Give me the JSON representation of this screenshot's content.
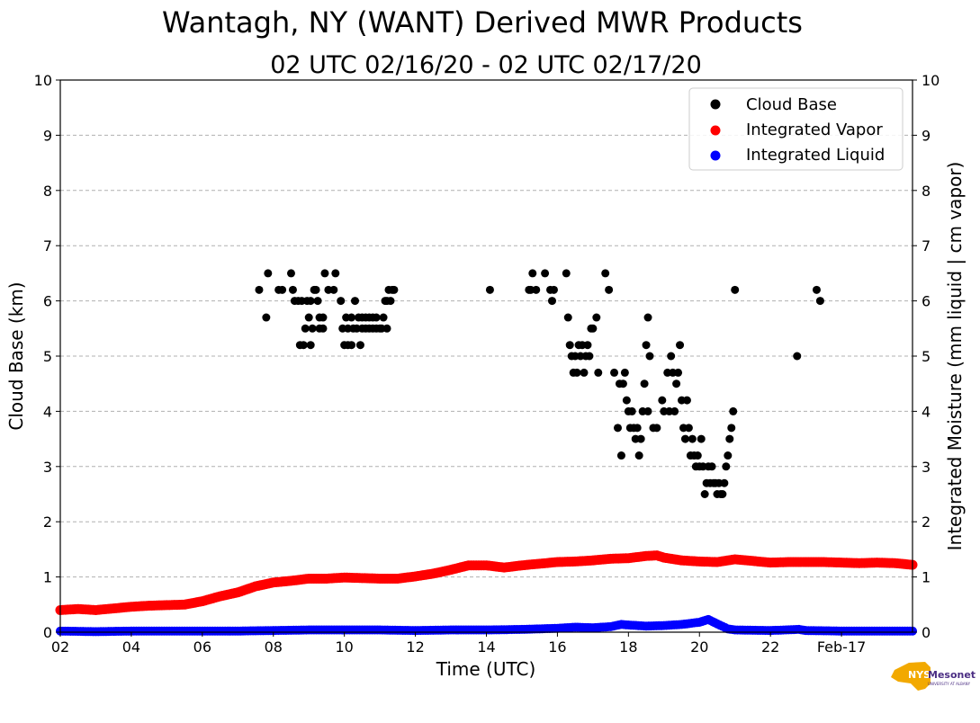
{
  "chart_data": {
    "type": "scatter",
    "title": "Wantagh, NY (WANT) Derived MWR Products",
    "subtitle": "02 UTC 02/16/20 - 02 UTC 02/17/20",
    "xlabel": "Time (UTC)",
    "ylabel": "Cloud Base (km)",
    "ylabel_right": "Integrated Moisture (mm liquid | cm vapor)",
    "xlim": [
      2,
      26
    ],
    "ylim": [
      0,
      10
    ],
    "x_ticks": [
      {
        "x": 2,
        "label": "02"
      },
      {
        "x": 4,
        "label": "04"
      },
      {
        "x": 6,
        "label": "06"
      },
      {
        "x": 8,
        "label": "08"
      },
      {
        "x": 10,
        "label": "10"
      },
      {
        "x": 12,
        "label": "12"
      },
      {
        "x": 14,
        "label": "14"
      },
      {
        "x": 16,
        "label": "16"
      },
      {
        "x": 18,
        "label": "18"
      },
      {
        "x": 20,
        "label": "20"
      },
      {
        "x": 22,
        "label": "22"
      },
      {
        "x": 24,
        "label": "Feb-17"
      }
    ],
    "y_ticks": [
      0,
      1,
      2,
      3,
      4,
      5,
      6,
      7,
      8,
      9,
      10
    ],
    "grid": "horizontal dashed",
    "legend_position": "top-right",
    "series": [
      {
        "name": "Cloud Base",
        "color": "#000000",
        "points": [
          [
            7.6,
            6.2
          ],
          [
            7.8,
            5.7
          ],
          [
            7.85,
            6.5
          ],
          [
            8.15,
            6.2
          ],
          [
            8.25,
            6.2
          ],
          [
            8.5,
            6.5
          ],
          [
            8.55,
            6.2
          ],
          [
            8.6,
            6.0
          ],
          [
            8.7,
            6.0
          ],
          [
            8.75,
            5.2
          ],
          [
            8.8,
            6.0
          ],
          [
            8.85,
            5.2
          ],
          [
            8.9,
            5.5
          ],
          [
            8.95,
            6.0
          ],
          [
            9.0,
            5.7
          ],
          [
            9.05,
            6.0
          ],
          [
            9.05,
            5.2
          ],
          [
            9.1,
            5.5
          ],
          [
            9.15,
            6.2
          ],
          [
            9.2,
            6.2
          ],
          [
            9.25,
            6.0
          ],
          [
            9.3,
            5.7
          ],
          [
            9.3,
            5.5
          ],
          [
            9.4,
            5.7
          ],
          [
            9.4,
            5.5
          ],
          [
            9.45,
            6.5
          ],
          [
            9.55,
            6.2
          ],
          [
            9.7,
            6.2
          ],
          [
            9.75,
            6.5
          ],
          [
            9.9,
            6.0
          ],
          [
            9.95,
            5.5
          ],
          [
            10.0,
            5.2
          ],
          [
            10.05,
            5.7
          ],
          [
            10.1,
            5.5
          ],
          [
            10.1,
            5.2
          ],
          [
            10.2,
            5.7
          ],
          [
            10.2,
            5.2
          ],
          [
            10.25,
            5.5
          ],
          [
            10.3,
            6.0
          ],
          [
            10.35,
            5.5
          ],
          [
            10.4,
            5.7
          ],
          [
            10.45,
            5.2
          ],
          [
            10.5,
            5.5
          ],
          [
            10.5,
            5.7
          ],
          [
            10.6,
            5.5
          ],
          [
            10.6,
            5.7
          ],
          [
            10.7,
            5.7
          ],
          [
            10.7,
            5.5
          ],
          [
            10.8,
            5.7
          ],
          [
            10.8,
            5.5
          ],
          [
            10.9,
            5.5
          ],
          [
            10.9,
            5.7
          ],
          [
            11.0,
            5.5
          ],
          [
            11.05,
            5.5
          ],
          [
            11.1,
            5.7
          ],
          [
            11.15,
            6.0
          ],
          [
            11.2,
            5.5
          ],
          [
            11.2,
            6.0
          ],
          [
            11.25,
            6.2
          ],
          [
            11.3,
            6.0
          ],
          [
            11.35,
            6.2
          ],
          [
            11.4,
            6.2
          ],
          [
            14.1,
            6.2
          ],
          [
            15.2,
            6.2
          ],
          [
            15.25,
            6.2
          ],
          [
            15.3,
            6.5
          ],
          [
            15.4,
            6.2
          ],
          [
            15.65,
            6.5
          ],
          [
            15.8,
            6.2
          ],
          [
            15.85,
            6.0
          ],
          [
            15.9,
            6.2
          ],
          [
            16.25,
            6.5
          ],
          [
            16.3,
            5.7
          ],
          [
            16.35,
            5.2
          ],
          [
            16.4,
            5.0
          ],
          [
            16.45,
            4.7
          ],
          [
            16.5,
            5.0
          ],
          [
            16.55,
            4.7
          ],
          [
            16.6,
            5.2
          ],
          [
            16.65,
            5.0
          ],
          [
            16.7,
            5.2
          ],
          [
            16.75,
            4.7
          ],
          [
            16.8,
            5.0
          ],
          [
            16.85,
            5.2
          ],
          [
            16.9,
            5.0
          ],
          [
            16.95,
            5.5
          ],
          [
            17.0,
            5.5
          ],
          [
            17.1,
            5.7
          ],
          [
            17.15,
            4.7
          ],
          [
            17.35,
            6.5
          ],
          [
            17.45,
            6.2
          ],
          [
            17.6,
            4.7
          ],
          [
            17.7,
            3.7
          ],
          [
            17.75,
            4.5
          ],
          [
            17.8,
            3.2
          ],
          [
            17.85,
            4.5
          ],
          [
            17.9,
            4.7
          ],
          [
            17.95,
            4.2
          ],
          [
            18.0,
            4.0
          ],
          [
            18.05,
            3.7
          ],
          [
            18.1,
            4.0
          ],
          [
            18.15,
            3.7
          ],
          [
            18.2,
            3.5
          ],
          [
            18.25,
            3.7
          ],
          [
            18.3,
            3.2
          ],
          [
            18.35,
            3.5
          ],
          [
            18.4,
            4.0
          ],
          [
            18.45,
            4.5
          ],
          [
            18.5,
            5.2
          ],
          [
            18.55,
            5.7
          ],
          [
            18.55,
            4.0
          ],
          [
            18.6,
            5.0
          ],
          [
            18.7,
            3.7
          ],
          [
            18.8,
            3.7
          ],
          [
            18.95,
            4.2
          ],
          [
            19.0,
            4.0
          ],
          [
            19.1,
            4.7
          ],
          [
            19.15,
            4.0
          ],
          [
            19.2,
            5.0
          ],
          [
            19.25,
            4.7
          ],
          [
            19.3,
            4.0
          ],
          [
            19.35,
            4.5
          ],
          [
            19.4,
            4.7
          ],
          [
            19.45,
            5.2
          ],
          [
            19.5,
            4.2
          ],
          [
            19.55,
            3.7
          ],
          [
            19.6,
            3.5
          ],
          [
            19.65,
            4.2
          ],
          [
            19.7,
            3.7
          ],
          [
            19.75,
            3.2
          ],
          [
            19.8,
            3.5
          ],
          [
            19.85,
            3.2
          ],
          [
            19.9,
            3.0
          ],
          [
            19.95,
            3.2
          ],
          [
            20.0,
            3.0
          ],
          [
            20.05,
            3.5
          ],
          [
            20.1,
            3.0
          ],
          [
            20.15,
            2.5
          ],
          [
            20.2,
            2.7
          ],
          [
            20.25,
            3.0
          ],
          [
            20.3,
            2.7
          ],
          [
            20.35,
            3.0
          ],
          [
            20.4,
            2.7
          ],
          [
            20.45,
            2.7
          ],
          [
            20.5,
            2.5
          ],
          [
            20.55,
            2.7
          ],
          [
            20.6,
            2.5
          ],
          [
            20.65,
            2.5
          ],
          [
            20.7,
            2.7
          ],
          [
            20.75,
            3.0
          ],
          [
            20.8,
            3.2
          ],
          [
            20.85,
            3.5
          ],
          [
            20.9,
            3.7
          ],
          [
            20.95,
            4.0
          ],
          [
            21.0,
            6.2
          ],
          [
            22.75,
            5.0
          ],
          [
            23.3,
            6.2
          ],
          [
            23.4,
            6.0
          ]
        ]
      },
      {
        "name": "Integrated Vapor",
        "color": "#ff0000",
        "points": [
          [
            2.0,
            0.4
          ],
          [
            2.5,
            0.42
          ],
          [
            3.0,
            0.4
          ],
          [
            3.5,
            0.43
          ],
          [
            4.0,
            0.46
          ],
          [
            4.5,
            0.48
          ],
          [
            5.0,
            0.49
          ],
          [
            5.5,
            0.5
          ],
          [
            6.0,
            0.56
          ],
          [
            6.5,
            0.65
          ],
          [
            7.0,
            0.72
          ],
          [
            7.5,
            0.83
          ],
          [
            8.0,
            0.9
          ],
          [
            8.5,
            0.93
          ],
          [
            9.0,
            0.97
          ],
          [
            9.5,
            0.97
          ],
          [
            10.0,
            0.99
          ],
          [
            10.5,
            0.98
          ],
          [
            11.0,
            0.97
          ],
          [
            11.5,
            0.97
          ],
          [
            12.0,
            1.01
          ],
          [
            12.5,
            1.06
          ],
          [
            13.0,
            1.13
          ],
          [
            13.5,
            1.21
          ],
          [
            14.0,
            1.21
          ],
          [
            14.5,
            1.17
          ],
          [
            15.0,
            1.21
          ],
          [
            15.5,
            1.24
          ],
          [
            16.0,
            1.27
          ],
          [
            16.5,
            1.28
          ],
          [
            17.0,
            1.3
          ],
          [
            17.5,
            1.33
          ],
          [
            18.0,
            1.34
          ],
          [
            18.5,
            1.38
          ],
          [
            18.8,
            1.39
          ],
          [
            19.0,
            1.35
          ],
          [
            19.5,
            1.3
          ],
          [
            20.0,
            1.28
          ],
          [
            20.5,
            1.27
          ],
          [
            21.0,
            1.32
          ],
          [
            21.5,
            1.29
          ],
          [
            22.0,
            1.26
          ],
          [
            22.5,
            1.27
          ],
          [
            23.0,
            1.27
          ],
          [
            23.5,
            1.27
          ],
          [
            24.0,
            1.26
          ],
          [
            24.5,
            1.25
          ],
          [
            25.0,
            1.26
          ],
          [
            25.5,
            1.25
          ],
          [
            26.0,
            1.22
          ]
        ]
      },
      {
        "name": "Integrated Liquid",
        "color": "#0000ff",
        "points": [
          [
            2.0,
            0.02
          ],
          [
            3.0,
            0.01
          ],
          [
            4.0,
            0.02
          ],
          [
            5.0,
            0.02
          ],
          [
            6.0,
            0.02
          ],
          [
            7.0,
            0.02
          ],
          [
            8.0,
            0.03
          ],
          [
            9.0,
            0.04
          ],
          [
            10.0,
            0.04
          ],
          [
            11.0,
            0.04
          ],
          [
            12.0,
            0.03
          ],
          [
            13.0,
            0.04
          ],
          [
            14.0,
            0.04
          ],
          [
            15.0,
            0.05
          ],
          [
            16.0,
            0.07
          ],
          [
            16.5,
            0.09
          ],
          [
            17.0,
            0.08
          ],
          [
            17.5,
            0.1
          ],
          [
            17.8,
            0.14
          ],
          [
            18.0,
            0.13
          ],
          [
            18.5,
            0.11
          ],
          [
            19.0,
            0.12
          ],
          [
            19.5,
            0.14
          ],
          [
            20.0,
            0.18
          ],
          [
            20.25,
            0.23
          ],
          [
            20.5,
            0.15
          ],
          [
            20.8,
            0.06
          ],
          [
            21.0,
            0.04
          ],
          [
            22.0,
            0.03
          ],
          [
            22.8,
            0.05
          ],
          [
            23.0,
            0.03
          ],
          [
            24.0,
            0.02
          ],
          [
            25.0,
            0.02
          ],
          [
            26.0,
            0.02
          ]
        ]
      }
    ]
  },
  "logo": {
    "text": "NYS Mesonet",
    "subtext": "UNIVERSITY AT ALBANY"
  }
}
